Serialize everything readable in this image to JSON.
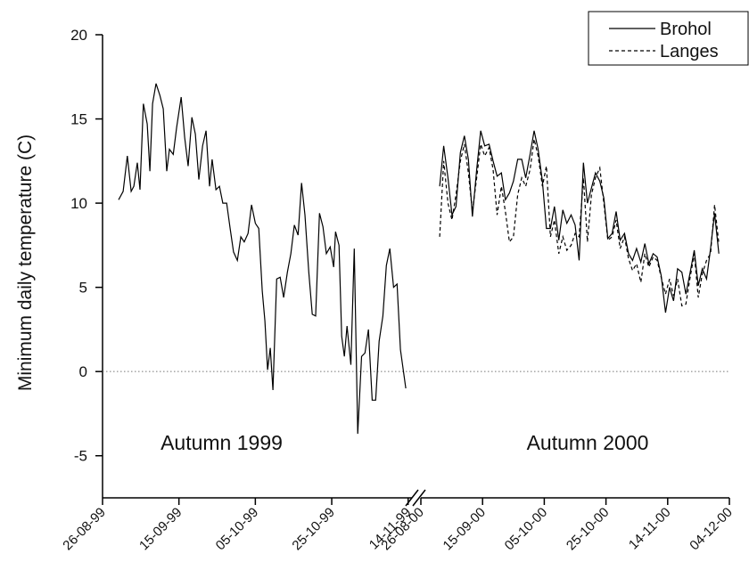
{
  "chart_data": [
    {
      "type": "line",
      "ylabel": "Minimum daily temperature (C)",
      "annotation": "Autumn 1999",
      "ylim": [
        -7.5,
        20
      ],
      "yticks": [
        -5,
        0,
        5,
        10,
        15,
        20
      ],
      "reference_line": 0,
      "xlim": [
        0,
        81
      ],
      "xticks": [
        {
          "value": 0,
          "label": "26-08-99"
        },
        {
          "value": 20,
          "label": "15-09-99"
        },
        {
          "value": 40,
          "label": "05-10-99"
        },
        {
          "value": 60,
          "label": "25-10-99"
        },
        {
          "value": 80,
          "label": "14-11-99"
        }
      ],
      "x": [
        4.2,
        5.4,
        6.5,
        7.5,
        8.2,
        9.1,
        9.8,
        10.7,
        11.7,
        12.4,
        13.1,
        14.0,
        15.0,
        15.9,
        16.8,
        17.5,
        18.5,
        19.4,
        20.6,
        21.5,
        22.4,
        23.4,
        24.3,
        25.2,
        26.2,
        27.1,
        28.0,
        28.7,
        29.7,
        30.6,
        31.5,
        32.5,
        33.4,
        34.3,
        35.3,
        36.2,
        37.1,
        38.1,
        39.0,
        40.0,
        40.9,
        41.8,
        42.5,
        43.2,
        43.9,
        44.6,
        45.6,
        46.5,
        47.4,
        48.4,
        49.3,
        50.2,
        51.2,
        52.1,
        53.0,
        54.0,
        54.9,
        55.8,
        56.8,
        57.7,
        58.6,
        59.6,
        60.5,
        61.0,
        61.9,
        62.6,
        63.3,
        64.0,
        65.0,
        65.9,
        66.8,
        67.8,
        68.7,
        69.6,
        70.6,
        71.5,
        72.4,
        73.4,
        74.3,
        75.2,
        76.2,
        77.1,
        78.0,
        79.4
      ],
      "series": [
        {
          "color": "#000000",
          "dash": "solid",
          "values": [
            10.2,
            10.7,
            12.8,
            10.7,
            11.0,
            12.4,
            10.8,
            15.9,
            14.7,
            11.9,
            15.9,
            17.1,
            16.4,
            15.6,
            11.9,
            13.2,
            12.9,
            14.5,
            16.3,
            13.9,
            12.2,
            15.1,
            14.1,
            11.4,
            13.4,
            14.3,
            11.0,
            12.6,
            10.8,
            11.0,
            10.0,
            10.0,
            8.5,
            7.1,
            6.6,
            8.0,
            7.7,
            8.2,
            9.9,
            8.8,
            8.5,
            4.8,
            3.0,
            0.1,
            1.4,
            -1.1,
            5.5,
            5.6,
            4.4,
            5.9,
            7.0,
            8.7,
            8.1,
            11.2,
            9.3,
            5.9,
            3.4,
            3.3,
            9.4,
            8.6,
            7.0,
            7.4,
            6.2,
            8.3,
            7.5,
            2.1,
            0.9,
            2.7,
            0.4,
            7.3,
            -3.7,
            0.9,
            1.1,
            2.5,
            -1.7,
            -1.7,
            1.8,
            3.3,
            6.3,
            7.3,
            5.0,
            5.2,
            1.3,
            -1.0
          ]
        }
      ]
    },
    {
      "type": "line",
      "annotation": "Autumn 2000",
      "legend": "upper right",
      "ylim": [
        -7.5,
        20
      ],
      "xlim": [
        0,
        100
      ],
      "xticks": [
        {
          "value": 0,
          "label": "26-08-00"
        },
        {
          "value": 20,
          "label": "15-09-00"
        },
        {
          "value": 40,
          "label": "05-10-00"
        },
        {
          "value": 60,
          "label": "25-10-00"
        },
        {
          "value": 80,
          "label": "14-11-00"
        },
        {
          "value": 100,
          "label": "04-12-00"
        }
      ],
      "x": [
        6.1,
        7.4,
        8.8,
        10.1,
        11.4,
        12.8,
        14.1,
        15.4,
        16.7,
        18.1,
        19.4,
        20.7,
        22.1,
        23.4,
        24.7,
        26.1,
        27.4,
        28.7,
        30.0,
        31.4,
        32.7,
        34.0,
        35.4,
        36.7,
        38.0,
        39.4,
        40.7,
        42.0,
        43.3,
        44.7,
        46.0,
        47.3,
        48.7,
        50.0,
        51.3,
        52.7,
        54.0,
        55.3,
        56.6,
        58.0,
        59.3,
        60.6,
        62.0,
        63.3,
        64.6,
        66.0,
        67.3,
        68.6,
        69.9,
        71.3,
        72.6,
        73.9,
        75.3,
        76.6,
        77.9,
        79.3,
        80.6,
        81.9,
        83.2,
        84.6,
        85.9,
        87.2,
        88.6,
        89.9,
        91.2,
        92.6,
        93.9,
        95.2,
        96.6
      ],
      "series": [
        {
          "name": "Brohol",
          "color": "#000000",
          "dash": "solid",
          "values": [
            11.0,
            13.4,
            11.5,
            9.3,
            9.8,
            13.0,
            14.0,
            12.6,
            9.2,
            12.0,
            14.3,
            13.4,
            13.5,
            12.5,
            11.6,
            11.8,
            10.2,
            10.6,
            11.3,
            12.6,
            12.6,
            11.5,
            12.9,
            14.3,
            13.2,
            11.3,
            8.5,
            8.5,
            9.8,
            7.8,
            9.6,
            8.8,
            9.3,
            8.7,
            6.6,
            12.4,
            10.0,
            10.9,
            11.8,
            11.3,
            10.3,
            7.9,
            8.2,
            9.5,
            7.8,
            8.2,
            7.0,
            6.6,
            7.3,
            6.5,
            7.6,
            6.4,
            7.0,
            6.8,
            5.7,
            3.5,
            5.0,
            4.2,
            6.1,
            5.9,
            4.6,
            5.8,
            7.2,
            5.1,
            6.1,
            5.5,
            7.3,
            9.4,
            7.0
          ]
        },
        {
          "name": "Langes",
          "color": "#000000",
          "dash": "dashed",
          "values": [
            8.0,
            12.5,
            10.0,
            9.0,
            10.5,
            12.5,
            13.5,
            11.8,
            9.5,
            11.5,
            13.5,
            12.8,
            13.3,
            12.0,
            9.3,
            11.0,
            9.5,
            7.7,
            8.0,
            10.5,
            11.5,
            11.0,
            12.0,
            13.8,
            12.8,
            11.0,
            12.2,
            8.0,
            9.0,
            7.0,
            8.0,
            7.2,
            7.5,
            8.2,
            8.0,
            11.5,
            7.7,
            10.5,
            11.5,
            12.1,
            10.0,
            7.8,
            8.0,
            9.0,
            7.3,
            8.0,
            6.7,
            6.0,
            6.4,
            5.3,
            7.0,
            6.2,
            6.8,
            6.6,
            5.6,
            4.6,
            5.5,
            4.5,
            5.5,
            3.9,
            4.0,
            5.5,
            7.0,
            4.4,
            5.8,
            6.6,
            7.0,
            9.9,
            7.6
          ]
        }
      ]
    }
  ]
}
